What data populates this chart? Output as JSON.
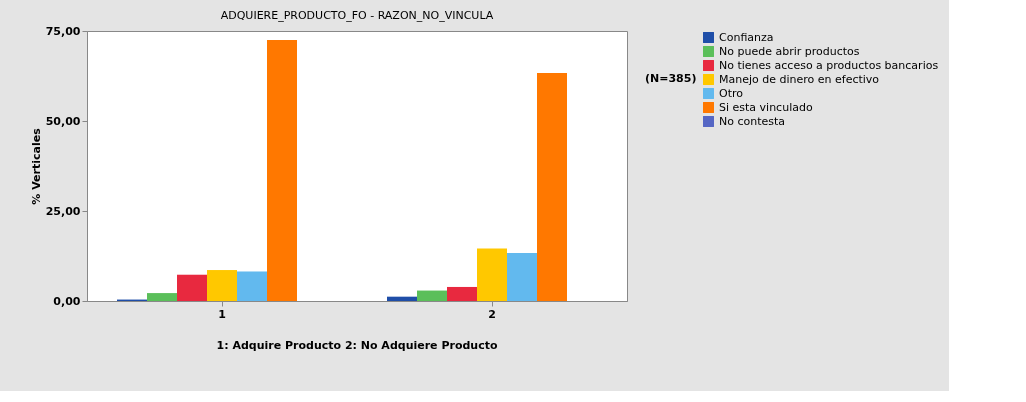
{
  "chart_data": {
    "type": "bar",
    "title": "ADQUIERE_PRODUCTO_FO - RAZON_NO_VINCULA",
    "ylabel": "% Verticales",
    "legend_title": "(N=385)",
    "categories": [
      "1",
      "2"
    ],
    "series": [
      {
        "name": "Confianza",
        "color": "#1f4ea8",
        "values": [
          0.4,
          1.2
        ]
      },
      {
        "name": "No puede abrir productos",
        "color": "#5bbf5a",
        "values": [
          2.2,
          2.9
        ]
      },
      {
        "name": "No tienes acceso a productos bancarios",
        "color": "#e8293f",
        "values": [
          7.3,
          3.9
        ]
      },
      {
        "name": "Manejo de dinero en efectivo",
        "color": "#ffc800",
        "values": [
          8.6,
          14.6
        ]
      },
      {
        "name": "Otro",
        "color": "#62b9ee",
        "values": [
          8.2,
          13.3
        ]
      },
      {
        "name": "Si esta vinculado",
        "color": "#ff7800",
        "values": [
          72.5,
          63.3
        ]
      },
      {
        "name": "No contesta",
        "color": "#5566c4",
        "values": [
          null,
          null
        ]
      }
    ],
    "ylim": [
      0,
      75
    ],
    "yticks": [
      {
        "value": 0,
        "label": "0,00"
      },
      {
        "value": 25,
        "label": "25,00"
      },
      {
        "value": 50,
        "label": "50,00"
      },
      {
        "value": 75,
        "label": "75,00"
      }
    ],
    "grid": false,
    "legend": "right",
    "annotations": [
      "1:  Adquire Producto     2:  No Adquiere Producto"
    ]
  }
}
